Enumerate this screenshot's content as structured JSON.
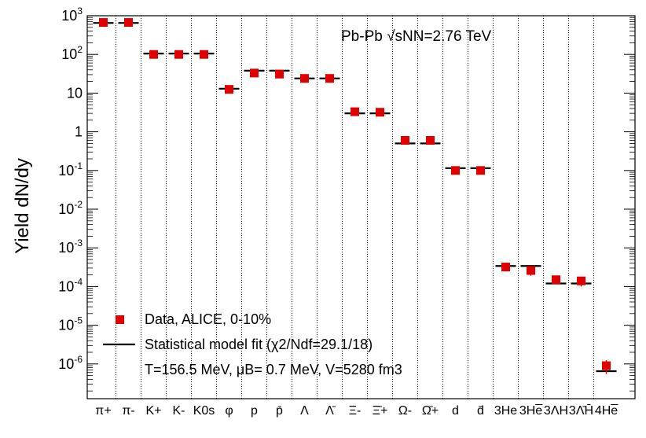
{
  "chart_data": {
    "type": "scatter",
    "ylabel": "Yield dN/dy",
    "yscale": "log",
    "ylim": [
      3e-07,
      1000
    ],
    "annotation": "Pb-Pb √sNN=2.76 TeV",
    "y_ticks": [
      "10^3",
      "10^2",
      "10",
      "1",
      "10^-1",
      "10^-2",
      "10^-3",
      "10^-4",
      "10^-5",
      "10^-6"
    ],
    "categories": [
      "π+",
      "π-",
      "K+",
      "K-",
      "K0s",
      "φ",
      "p",
      "p̄",
      "Λ",
      "Λ̄",
      "Ξ-",
      "Ξ̄+",
      "Ω-",
      "Ω̄+",
      "d",
      "d̄",
      "3He",
      "3He̅",
      "3ΛH",
      "3Λ̄H̄",
      "4He̅"
    ],
    "legend": {
      "placement": "bottom-left",
      "data_label": "Data, ALICE, 0-10%",
      "fit_label": "Statistical model fit (χ2/Ndf=29.1/18)",
      "params_label": "T=156.5 MeV, μB= 0.7 MeV, V=5280 fm3"
    },
    "series": [
      {
        "name": "Data, ALICE, 0-10%",
        "marker": "square",
        "color": "#e00000",
        "values": [
          670,
          670,
          100,
          100,
          100,
          12.5,
          33,
          31,
          24,
          24,
          3.3,
          3.2,
          0.6,
          0.6,
          0.1,
          0.1,
          0.00032,
          0.00026,
          0.00015,
          0.00014,
          9e-07
        ],
        "errors": [
          0,
          0,
          0,
          0,
          0,
          0,
          0,
          0,
          0,
          0,
          0,
          0,
          0,
          0,
          0,
          0,
          3e-05,
          7e-05,
          3e-05,
          4e-05,
          3.5e-07
        ]
      },
      {
        "name": "Statistical model fit (χ2/Ndf=29.1/18)",
        "marker": "hline",
        "color": "#000000",
        "values": [
          650,
          650,
          105,
          105,
          105,
          13,
          38,
          38,
          24,
          24,
          3.0,
          3.0,
          0.5,
          0.5,
          0.115,
          0.115,
          0.00034,
          0.00034,
          0.00012,
          0.00012,
          6.5e-07
        ]
      }
    ]
  }
}
